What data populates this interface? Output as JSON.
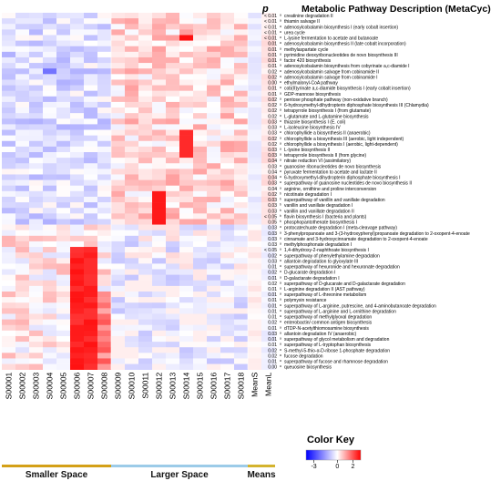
{
  "chart_data": {
    "type": "heatmap",
    "p_header": "p",
    "description_header": "Metabolic Pathway Description (MetaCyc)",
    "columns": [
      "S00001",
      "S00002",
      "S00003",
      "S00004",
      "S00005",
      "S00006",
      "S00007",
      "S00008",
      "S00009",
      "S00010",
      "S00011",
      "S00012",
      "S00013",
      "S00014",
      "S00015",
      "S00016",
      "S00017",
      "S00018",
      "MeanS",
      "MeanL"
    ],
    "groups": [
      {
        "label": "Smaller Space",
        "color": "#d4a017",
        "from": 0,
        "to": 7
      },
      {
        "label": "Larger Space",
        "color": "#9ccbe8",
        "from": 8,
        "to": 17
      },
      {
        "label": "Means",
        "color": "#d4b32e",
        "from": 18,
        "to": 19
      }
    ],
    "legend": {
      "title": "Color Key",
      "min": -4,
      "max": 3,
      "ticks": [
        "-3",
        "0",
        "2"
      ],
      "tick_values": [
        -3,
        0,
        2
      ],
      "colors": [
        "#0000ff",
        "#ffffff",
        "#ff0000"
      ]
    },
    "rows": [
      {
        "p": "< 0.01",
        "mark": "a",
        "name": "creatinine degradation II"
      },
      {
        "p": "< 0.01",
        "mark": "a",
        "name": "thiamin salvage II"
      },
      {
        "p": "< 0.01",
        "mark": "a",
        "name": "adenosylcobalamin biosynthesis I (early cobalt insertion)"
      },
      {
        "p": "< 0.01",
        "mark": "a",
        "name": "urea cycle"
      },
      {
        "p": "< 0.01",
        "mark": "a",
        "name": "L-lysine fermentation to acetate and butanoate"
      },
      {
        "p": "0.01",
        "mark": "a",
        "name": "adenosylcobalamin biosynthesis II (late cobalt incorporation)"
      },
      {
        "p": "0.01",
        "mark": "a",
        "name": "methylaspartate cycle"
      },
      {
        "p": "0.01",
        "mark": "a",
        "name": "pyrimidine deoxyribonucleotides de novo biosynthesis III"
      },
      {
        "p": "0.01",
        "mark": "a",
        "name": "factor 420 biosynthesis"
      },
      {
        "p": "0.01",
        "mark": "a",
        "name": "adenosylcobalamin biosynthesis from cobyrinate a,c-diamide I"
      },
      {
        "p": "0.02",
        "mark": "a",
        "name": "adenosylcobalamin salvage from cobinamide II"
      },
      {
        "p": "0.02",
        "mark": "a",
        "name": "adenosylcobalamin salvage from cobinamide I"
      },
      {
        "p": "0.00",
        "mark": "a",
        "name": "ethylmalonyl-CoA pathway"
      },
      {
        "p": "0.01",
        "mark": "a",
        "name": "cob(II)yrinate a,c-diamide biosynthesis I (early cobalt insertion)"
      },
      {
        "p": "0.01",
        "mark": "a",
        "name": "GDP-mannose biosynthesis"
      },
      {
        "p": "0.02",
        "mark": "a",
        "name": "pentose phosphate pathway (non-oxidative branch)"
      },
      {
        "p": "0.02",
        "mark": "a",
        "name": "6-hydroxymethyl-dihydropterin diphosphate biosynthesis III (Chlamydia)"
      },
      {
        "p": "0.02",
        "mark": "a",
        "name": "tetrapyrrole biosynthesis I (from glutamate)"
      },
      {
        "p": "0.02",
        "mark": "a",
        "name": "L-glutamate and L-glutamine biosynthesis"
      },
      {
        "p": "0.03",
        "mark": "a",
        "name": "thiazole biosynthesis I (E. coli)"
      },
      {
        "p": "0.03",
        "mark": "a",
        "name": "L-isoleucine biosynthesis IV"
      },
      {
        "p": "0.03",
        "mark": "a",
        "name": "chlorophyllide a biosynthesis II (anaerobic)"
      },
      {
        "p": "0.02",
        "mark": "a",
        "name": "chlorophyllide a biosynthesis III (aerobic, light independent)"
      },
      {
        "p": "0.02",
        "mark": "a",
        "name": "chlorophyllide a biosynthesis I (aerobic, light-dependent)"
      },
      {
        "p": "0.03",
        "mark": "a",
        "name": "L-lysine biosynthesis II"
      },
      {
        "p": "0.03",
        "mark": "a",
        "name": "tetrapyrrole biosynthesis II (from glycine)"
      },
      {
        "p": "0.04",
        "mark": "a",
        "name": "nitrate reduction VI (assimilatory)"
      },
      {
        "p": "0.03",
        "mark": "a",
        "name": "guanosine ribonucleotides de novo biosynthesis"
      },
      {
        "p": "0.04",
        "mark": "a",
        "name": "pyruvate fermentation to acetate and lactate II"
      },
      {
        "p": "0.04",
        "mark": "a",
        "name": "6-hydroxymethyl-dihydropterin diphosphate biosynthesis I"
      },
      {
        "p": "0.03",
        "mark": "a",
        "name": "superpathway of guanosine nucleotides de novo biosynthesis II"
      },
      {
        "p": "0.04",
        "mark": "a",
        "name": "arginine, ornithine and proline interconversion"
      },
      {
        "p": "0.02",
        "mark": "b",
        "name": "nicotinate degradation I"
      },
      {
        "p": "0.03",
        "mark": "b",
        "name": "superpathway of vanillin and vanillate degradation"
      },
      {
        "p": "0.03",
        "mark": "b",
        "name": "vanillin and vanillate degradation I"
      },
      {
        "p": "0.03",
        "mark": "b",
        "name": "vanillin and vanillate degradation II"
      },
      {
        "p": "< 0.05",
        "mark": "b",
        "name": "flavin biosynthesis I (bacteria and plants)"
      },
      {
        "p": "0.05",
        "mark": "b",
        "name": "phosphopantothenate biosynthesis I"
      },
      {
        "p": "0.03",
        "mark": "a",
        "name": "protocatechuate degradation I (meta-cleavage pathway)"
      },
      {
        "p": "0.03",
        "mark": "a",
        "name": "3-phenylpropanoate and 3-(3-hydroxyphenyl)propanoate degradation to 2-oxopent-4-enoate"
      },
      {
        "p": "0.03",
        "mark": "a",
        "name": "cinnamate and 3-hydroxycinnamate degradation to 2-oxopent-4-enoate"
      },
      {
        "p": "0.03",
        "mark": "a",
        "name": "methylphosphonate degradation I"
      },
      {
        "p": "< 0.05",
        "mark": "a",
        "name": "1,4-dihydroxy-2-naphthoate biosynthesis I"
      },
      {
        "p": "0.02",
        "mark": "a",
        "name": "superpathway of phenylethylamine degradation"
      },
      {
        "p": "0.03",
        "mark": "a",
        "name": "allantoin degradation to glyoxylate III"
      },
      {
        "p": "0.01",
        "mark": "a",
        "name": "superpathway of hexuronide and hexuronate degradation"
      },
      {
        "p": "0.02",
        "mark": "a",
        "name": "D-glucarate degradation I"
      },
      {
        "p": "0.01",
        "mark": "a",
        "name": "D-galactarate degradation I"
      },
      {
        "p": "0.02",
        "mark": "a",
        "name": "superpathway of D-glucarate and D-galactarate degradation"
      },
      {
        "p": "0.01",
        "mark": "a",
        "name": "L-arginine degradation II (AST pathway)"
      },
      {
        "p": "0.01",
        "mark": "a",
        "name": "superpathway of L-threonine metabolism"
      },
      {
        "p": "0.01",
        "mark": "a",
        "name": "polymyxin resistance"
      },
      {
        "p": "0.01",
        "mark": "a",
        "name": "superpathway of L-arginine, putrescine, and 4-aminobutanoate degradation"
      },
      {
        "p": "0.01",
        "mark": "a",
        "name": "superpathway of L-arginine and L-ornithine degradation"
      },
      {
        "p": "0.01",
        "mark": "a",
        "name": "superpathway of methylglyoxal degradation"
      },
      {
        "p": "0.02",
        "mark": "a",
        "name": "enterobactin/ common antigen biosynthesis"
      },
      {
        "p": "0.01",
        "mark": "a",
        "name": "dTDP-N-acetylthiomosamine biosynthesis"
      },
      {
        "p": "0.03",
        "mark": "a",
        "name": "allantoin degradation IV (anaerobic)"
      },
      {
        "p": "0.01",
        "mark": "a",
        "name": "superpathway of glycol metabolism and degradation"
      },
      {
        "p": "0.01",
        "mark": "a",
        "name": "superpathway of L-tryptophan biosynthesis"
      },
      {
        "p": "0.02",
        "mark": "a",
        "name": "S-methyl-5-thio-&alpha;-D-ribose 1-phosphate degradation"
      },
      {
        "p": "0.02",
        "mark": "a",
        "name": "fucose degradation"
      },
      {
        "p": "0.01",
        "mark": "a",
        "name": "superpathway of fucose and rhamnose degradation"
      },
      {
        "p": "0.00",
        "mark": "a",
        "name": "queuosine biosynthesis"
      }
    ]
  }
}
